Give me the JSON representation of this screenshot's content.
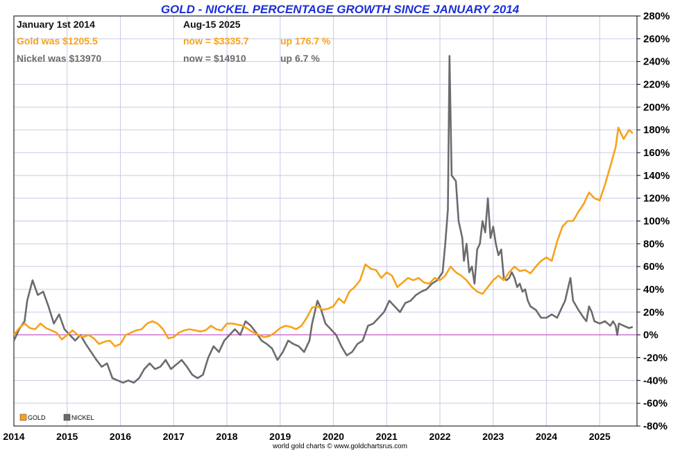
{
  "chart_data": {
    "type": "line",
    "title": "GOLD - NICKEL PERCENTAGE GROWTH SINCE JANUARY 2014",
    "info": {
      "start_label": "January 1st 2014",
      "end_label": "Aug-15  2025",
      "gold_start": "Gold was $1205.5",
      "gold_now": "now = $3335.7",
      "gold_change": "up 176.7 %",
      "nickel_start": "Nickel was $13970",
      "nickel_now": "now = $14910",
      "nickel_change": "up 6.7 %"
    },
    "x_range": [
      2014,
      2025.7
    ],
    "x_ticks": [
      "2014",
      "2015",
      "2016",
      "2017",
      "2018",
      "2019",
      "2020",
      "2021",
      "2022",
      "2023",
      "2024",
      "2025"
    ],
    "y_range": [
      -80,
      280
    ],
    "y_ticks": [
      "280%",
      "260%",
      "240%",
      "220%",
      "200%",
      "180%",
      "160%",
      "140%",
      "120%",
      "100%",
      "80%",
      "60%",
      "40%",
      "20%",
      "0%",
      "-20%",
      "-40%",
      "-60%",
      "-80%"
    ],
    "ylabel": "%",
    "grid": true,
    "legend": [
      "GOLD",
      "NICKEL"
    ],
    "source": "world gold charts © www.goldchartsrus.com",
    "colors": {
      "gold": "#f7a21a",
      "nickel": "#6b6b6b",
      "zero_line": "#c040c0",
      "grid": "#c9c9e6",
      "title": "#1b2fd6"
    },
    "series": [
      {
        "name": "GOLD",
        "points": [
          [
            2014.0,
            0
          ],
          [
            2014.1,
            6
          ],
          [
            2014.2,
            10
          ],
          [
            2014.3,
            6
          ],
          [
            2014.4,
            5
          ],
          [
            2014.5,
            10
          ],
          [
            2014.6,
            6
          ],
          [
            2014.7,
            4
          ],
          [
            2014.8,
            2
          ],
          [
            2014.9,
            -4
          ],
          [
            2015.0,
            0
          ],
          [
            2015.1,
            4
          ],
          [
            2015.2,
            0
          ],
          [
            2015.3,
            -2
          ],
          [
            2015.4,
            0
          ],
          [
            2015.5,
            -3
          ],
          [
            2015.6,
            -8
          ],
          [
            2015.7,
            -6
          ],
          [
            2015.8,
            -5
          ],
          [
            2015.9,
            -10
          ],
          [
            2016.0,
            -8
          ],
          [
            2016.1,
            0
          ],
          [
            2016.2,
            2
          ],
          [
            2016.3,
            4
          ],
          [
            2016.4,
            5
          ],
          [
            2016.5,
            10
          ],
          [
            2016.6,
            12
          ],
          [
            2016.7,
            10
          ],
          [
            2016.8,
            5
          ],
          [
            2016.9,
            -3
          ],
          [
            2017.0,
            -2
          ],
          [
            2017.1,
            2
          ],
          [
            2017.2,
            4
          ],
          [
            2017.3,
            5
          ],
          [
            2017.4,
            4
          ],
          [
            2017.5,
            3
          ],
          [
            2017.6,
            4
          ],
          [
            2017.7,
            8
          ],
          [
            2017.8,
            5
          ],
          [
            2017.9,
            4
          ],
          [
            2018.0,
            10
          ],
          [
            2018.1,
            10
          ],
          [
            2018.2,
            9
          ],
          [
            2018.3,
            8
          ],
          [
            2018.4,
            5
          ],
          [
            2018.5,
            2
          ],
          [
            2018.6,
            0
          ],
          [
            2018.7,
            -2
          ],
          [
            2018.8,
            -1
          ],
          [
            2018.9,
            2
          ],
          [
            2019.0,
            6
          ],
          [
            2019.1,
            8
          ],
          [
            2019.2,
            7
          ],
          [
            2019.3,
            5
          ],
          [
            2019.4,
            8
          ],
          [
            2019.5,
            15
          ],
          [
            2019.6,
            24
          ],
          [
            2019.7,
            25
          ],
          [
            2019.8,
            22
          ],
          [
            2019.9,
            23
          ],
          [
            2020.0,
            25
          ],
          [
            2020.1,
            32
          ],
          [
            2020.2,
            28
          ],
          [
            2020.3,
            38
          ],
          [
            2020.4,
            42
          ],
          [
            2020.5,
            48
          ],
          [
            2020.6,
            62
          ],
          [
            2020.7,
            58
          ],
          [
            2020.8,
            57
          ],
          [
            2020.9,
            50
          ],
          [
            2021.0,
            55
          ],
          [
            2021.1,
            52
          ],
          [
            2021.2,
            42
          ],
          [
            2021.3,
            46
          ],
          [
            2021.4,
            50
          ],
          [
            2021.5,
            48
          ],
          [
            2021.6,
            50
          ],
          [
            2021.7,
            46
          ],
          [
            2021.8,
            45
          ],
          [
            2021.9,
            50
          ],
          [
            2022.0,
            48
          ],
          [
            2022.1,
            52
          ],
          [
            2022.2,
            60
          ],
          [
            2022.3,
            55
          ],
          [
            2022.4,
            52
          ],
          [
            2022.5,
            48
          ],
          [
            2022.6,
            42
          ],
          [
            2022.7,
            38
          ],
          [
            2022.8,
            36
          ],
          [
            2022.9,
            42
          ],
          [
            2023.0,
            48
          ],
          [
            2023.1,
            52
          ],
          [
            2023.2,
            48
          ],
          [
            2023.3,
            55
          ],
          [
            2023.4,
            60
          ],
          [
            2023.5,
            56
          ],
          [
            2023.6,
            57
          ],
          [
            2023.7,
            54
          ],
          [
            2023.8,
            60
          ],
          [
            2023.9,
            65
          ],
          [
            2024.0,
            68
          ],
          [
            2024.1,
            65
          ],
          [
            2024.2,
            82
          ],
          [
            2024.3,
            95
          ],
          [
            2024.4,
            100
          ],
          [
            2024.5,
            100
          ],
          [
            2024.6,
            108
          ],
          [
            2024.7,
            115
          ],
          [
            2024.8,
            125
          ],
          [
            2024.9,
            120
          ],
          [
            2025.0,
            118
          ],
          [
            2025.1,
            132
          ],
          [
            2025.2,
            148
          ],
          [
            2025.3,
            165
          ],
          [
            2025.35,
            182
          ],
          [
            2025.45,
            172
          ],
          [
            2025.55,
            180
          ],
          [
            2025.62,
            177
          ]
        ]
      },
      {
        "name": "NICKEL",
        "points": [
          [
            2014.0,
            -5
          ],
          [
            2014.1,
            5
          ],
          [
            2014.2,
            12
          ],
          [
            2014.25,
            30
          ],
          [
            2014.35,
            48
          ],
          [
            2014.45,
            35
          ],
          [
            2014.55,
            38
          ],
          [
            2014.65,
            25
          ],
          [
            2014.75,
            10
          ],
          [
            2014.85,
            18
          ],
          [
            2014.95,
            5
          ],
          [
            2015.05,
            0
          ],
          [
            2015.15,
            -5
          ],
          [
            2015.25,
            0
          ],
          [
            2015.35,
            -8
          ],
          [
            2015.45,
            -15
          ],
          [
            2015.55,
            -22
          ],
          [
            2015.65,
            -28
          ],
          [
            2015.75,
            -25
          ],
          [
            2015.85,
            -38
          ],
          [
            2015.95,
            -40
          ],
          [
            2016.05,
            -42
          ],
          [
            2016.15,
            -40
          ],
          [
            2016.25,
            -42
          ],
          [
            2016.35,
            -38
          ],
          [
            2016.45,
            -30
          ],
          [
            2016.55,
            -25
          ],
          [
            2016.65,
            -30
          ],
          [
            2016.75,
            -28
          ],
          [
            2016.85,
            -22
          ],
          [
            2016.95,
            -30
          ],
          [
            2017.05,
            -26
          ],
          [
            2017.15,
            -22
          ],
          [
            2017.25,
            -28
          ],
          [
            2017.35,
            -35
          ],
          [
            2017.45,
            -38
          ],
          [
            2017.55,
            -35
          ],
          [
            2017.65,
            -20
          ],
          [
            2017.75,
            -10
          ],
          [
            2017.85,
            -15
          ],
          [
            2017.95,
            -5
          ],
          [
            2018.05,
            0
          ],
          [
            2018.15,
            5
          ],
          [
            2018.25,
            0
          ],
          [
            2018.35,
            12
          ],
          [
            2018.45,
            8
          ],
          [
            2018.55,
            2
          ],
          [
            2018.65,
            -5
          ],
          [
            2018.75,
            -8
          ],
          [
            2018.85,
            -12
          ],
          [
            2018.95,
            -22
          ],
          [
            2019.05,
            -15
          ],
          [
            2019.15,
            -5
          ],
          [
            2019.25,
            -8
          ],
          [
            2019.35,
            -10
          ],
          [
            2019.45,
            -15
          ],
          [
            2019.55,
            -5
          ],
          [
            2019.6,
            10
          ],
          [
            2019.7,
            30
          ],
          [
            2019.75,
            25
          ],
          [
            2019.85,
            10
          ],
          [
            2019.95,
            5
          ],
          [
            2020.05,
            0
          ],
          [
            2020.15,
            -10
          ],
          [
            2020.25,
            -18
          ],
          [
            2020.35,
            -15
          ],
          [
            2020.45,
            -8
          ],
          [
            2020.55,
            -5
          ],
          [
            2020.65,
            8
          ],
          [
            2020.75,
            10
          ],
          [
            2020.85,
            15
          ],
          [
            2020.95,
            20
          ],
          [
            2021.05,
            30
          ],
          [
            2021.15,
            25
          ],
          [
            2021.25,
            20
          ],
          [
            2021.35,
            28
          ],
          [
            2021.45,
            30
          ],
          [
            2021.55,
            35
          ],
          [
            2021.65,
            38
          ],
          [
            2021.75,
            40
          ],
          [
            2021.85,
            45
          ],
          [
            2021.95,
            48
          ],
          [
            2022.05,
            55
          ],
          [
            2022.1,
            80
          ],
          [
            2022.15,
            110
          ],
          [
            2022.18,
            245
          ],
          [
            2022.22,
            140
          ],
          [
            2022.3,
            135
          ],
          [
            2022.35,
            100
          ],
          [
            2022.42,
            85
          ],
          [
            2022.45,
            65
          ],
          [
            2022.5,
            80
          ],
          [
            2022.55,
            55
          ],
          [
            2022.6,
            60
          ],
          [
            2022.65,
            45
          ],
          [
            2022.7,
            75
          ],
          [
            2022.75,
            80
          ],
          [
            2022.8,
            100
          ],
          [
            2022.85,
            90
          ],
          [
            2022.9,
            120
          ],
          [
            2022.95,
            85
          ],
          [
            2023.0,
            95
          ],
          [
            2023.05,
            80
          ],
          [
            2023.1,
            70
          ],
          [
            2023.15,
            75
          ],
          [
            2023.2,
            50
          ],
          [
            2023.25,
            48
          ],
          [
            2023.3,
            50
          ],
          [
            2023.35,
            55
          ],
          [
            2023.4,
            50
          ],
          [
            2023.45,
            42
          ],
          [
            2023.5,
            45
          ],
          [
            2023.55,
            38
          ],
          [
            2023.6,
            40
          ],
          [
            2023.65,
            30
          ],
          [
            2023.7,
            25
          ],
          [
            2023.8,
            22
          ],
          [
            2023.9,
            15
          ],
          [
            2024.0,
            15
          ],
          [
            2024.1,
            18
          ],
          [
            2024.2,
            15
          ],
          [
            2024.3,
            25
          ],
          [
            2024.35,
            30
          ],
          [
            2024.4,
            40
          ],
          [
            2024.45,
            50
          ],
          [
            2024.5,
            30
          ],
          [
            2024.6,
            22
          ],
          [
            2024.7,
            15
          ],
          [
            2024.75,
            12
          ],
          [
            2024.8,
            25
          ],
          [
            2024.85,
            20
          ],
          [
            2024.9,
            12
          ],
          [
            2025.0,
            10
          ],
          [
            2025.1,
            12
          ],
          [
            2025.2,
            8
          ],
          [
            2025.25,
            12
          ],
          [
            2025.3,
            8
          ],
          [
            2025.33,
            0
          ],
          [
            2025.36,
            10
          ],
          [
            2025.45,
            8
          ],
          [
            2025.55,
            6
          ],
          [
            2025.62,
            7
          ]
        ]
      }
    ]
  }
}
